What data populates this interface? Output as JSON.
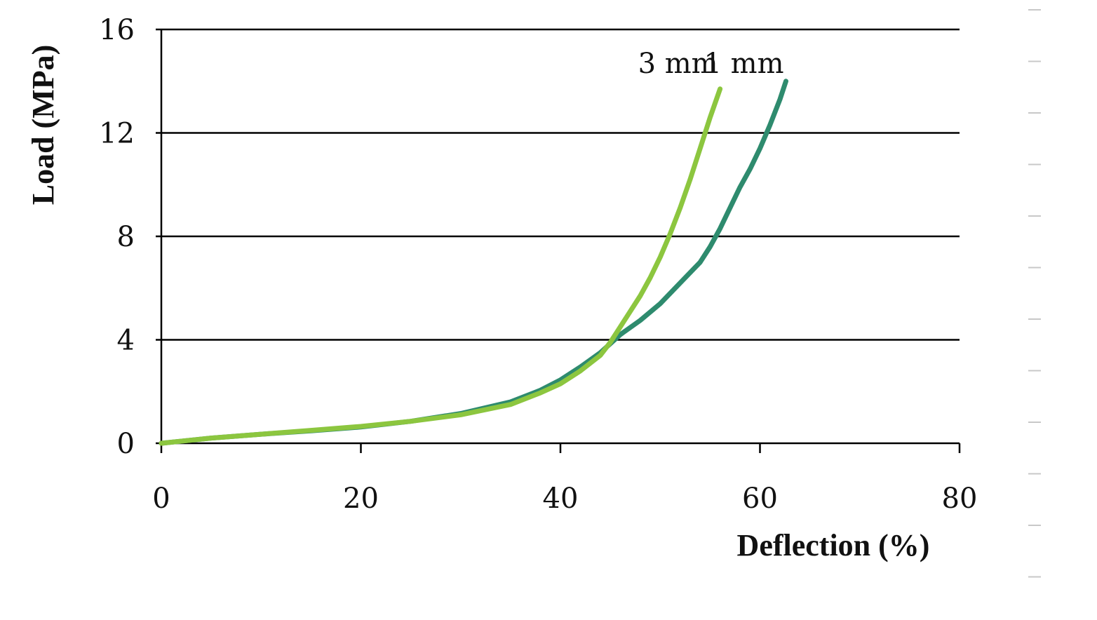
{
  "chart_data": {
    "type": "line",
    "title": "",
    "xlabel": "Deflection (%)",
    "ylabel": "Load (MPa)",
    "xlim": [
      0,
      80
    ],
    "ylim": [
      0,
      16
    ],
    "x_ticks": [
      0,
      20,
      40,
      60,
      80
    ],
    "y_ticks": [
      0,
      4,
      8,
      12,
      16
    ],
    "x_tick_labels": [
      "0",
      "20",
      "40",
      "60",
      "80"
    ],
    "y_tick_labels": [
      "0",
      "4",
      "8",
      "12",
      "16"
    ],
    "grid": "horizontal",
    "legend": "inline labels near line ends",
    "series": [
      {
        "name": "3 mm",
        "color": "#8cc63f",
        "points": [
          [
            0,
            0
          ],
          [
            5,
            0.2
          ],
          [
            10,
            0.35
          ],
          [
            15,
            0.5
          ],
          [
            20,
            0.65
          ],
          [
            25,
            0.85
          ],
          [
            30,
            1.1
          ],
          [
            35,
            1.5
          ],
          [
            38,
            1.95
          ],
          [
            40,
            2.3
          ],
          [
            42,
            2.8
          ],
          [
            44,
            3.4
          ],
          [
            45,
            3.9
          ],
          [
            46,
            4.5
          ],
          [
            47,
            5.1
          ],
          [
            48,
            5.7
          ],
          [
            49,
            6.4
          ],
          [
            50,
            7.2
          ],
          [
            51,
            8.1
          ],
          [
            52,
            9.1
          ],
          [
            53,
            10.2
          ],
          [
            54,
            11.4
          ],
          [
            55,
            12.6
          ],
          [
            56,
            13.7
          ]
        ]
      },
      {
        "name": "1 mm",
        "color": "#2e8b6e",
        "points": [
          [
            0,
            0
          ],
          [
            5,
            0.2
          ],
          [
            10,
            0.35
          ],
          [
            15,
            0.48
          ],
          [
            20,
            0.63
          ],
          [
            25,
            0.85
          ],
          [
            30,
            1.15
          ],
          [
            35,
            1.6
          ],
          [
            38,
            2.05
          ],
          [
            40,
            2.45
          ],
          [
            42,
            2.95
          ],
          [
            44,
            3.5
          ],
          [
            45,
            3.85
          ],
          [
            46,
            4.2
          ],
          [
            48,
            4.75
          ],
          [
            50,
            5.4
          ],
          [
            52,
            6.2
          ],
          [
            54,
            7.0
          ],
          [
            55,
            7.6
          ],
          [
            56,
            8.3
          ],
          [
            57,
            9.1
          ],
          [
            58,
            9.9
          ],
          [
            59,
            10.6
          ],
          [
            60,
            11.4
          ],
          [
            61,
            12.3
          ],
          [
            62,
            13.3
          ],
          [
            62.6,
            14.0
          ]
        ]
      }
    ]
  }
}
